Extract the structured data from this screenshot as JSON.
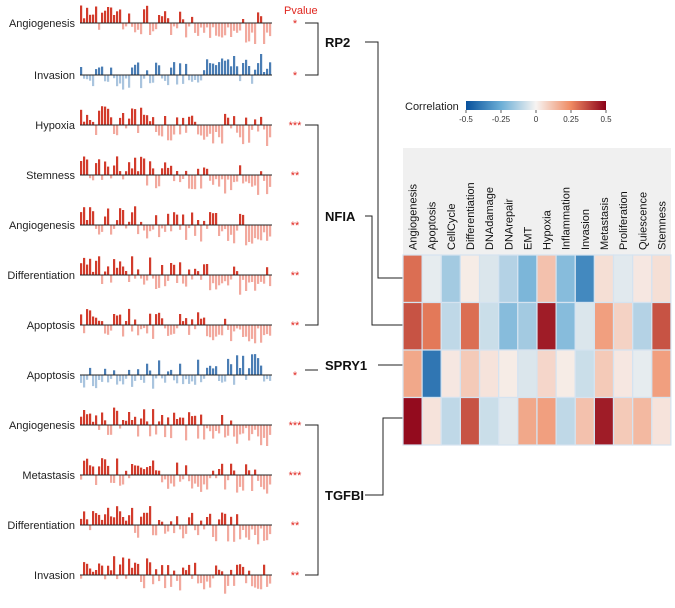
{
  "pvalue_header": "Pvalue",
  "legend": {
    "title": "Correlation",
    "ticks": [
      "-0.5",
      "-0.25",
      "0",
      "0.25",
      "0.5"
    ],
    "tick_values": [
      -0.5,
      -0.25,
      0,
      0.25,
      0.5
    ]
  },
  "colors": {
    "pos_strong": "#d23b2c",
    "pos_light": "#f2a99e",
    "neg_strong": "#4a7db4",
    "neg_light": "#a9c4de",
    "pvalue": "#e0261f"
  },
  "genes": [
    {
      "name": "RP2",
      "heatmap_row": 0,
      "enrichments": [
        0,
        1
      ]
    },
    {
      "name": "NFIA",
      "heatmap_row": 1,
      "enrichments": [
        2,
        3,
        4,
        5,
        6
      ]
    },
    {
      "name": "SPRY1",
      "heatmap_row": 2,
      "enrichments": [
        7
      ]
    },
    {
      "name": "TGFBI",
      "heatmap_row": 3,
      "enrichments": [
        8,
        9,
        10,
        11
      ]
    }
  ],
  "enrichment_plots": [
    {
      "label": "Angiogenesis",
      "pvalue": "*",
      "direction": "positive"
    },
    {
      "label": "Invasion",
      "pvalue": "*",
      "direction": "negative"
    },
    {
      "label": "Hypoxia",
      "pvalue": "***",
      "direction": "positive"
    },
    {
      "label": "Stemness",
      "pvalue": "**",
      "direction": "positive"
    },
    {
      "label": "Angiogenesis",
      "pvalue": "**",
      "direction": "positive"
    },
    {
      "label": "Differentiation",
      "pvalue": "**",
      "direction": "positive"
    },
    {
      "label": "Apoptosis",
      "pvalue": "**",
      "direction": "positive"
    },
    {
      "label": "Apoptosis",
      "pvalue": "*",
      "direction": "negative"
    },
    {
      "label": "Angiogenesis",
      "pvalue": "***",
      "direction": "positive"
    },
    {
      "label": "Metastasis",
      "pvalue": "***",
      "direction": "positive"
    },
    {
      "label": "Differentiation",
      "pvalue": "**",
      "direction": "positive"
    },
    {
      "label": "Invasion",
      "pvalue": "**",
      "direction": "positive"
    }
  ],
  "chart_data": {
    "type": "heatmap",
    "title": "",
    "legend_title": "Correlation",
    "color_range": [
      -0.5,
      0.5
    ],
    "columns": [
      "Angiogenesis",
      "Apoptosis",
      "CellCycle",
      "Differentiation",
      "DNAdamage",
      "DNArepair",
      "EMT",
      "Hypoxia",
      "Inflammation",
      "Invasion",
      "Metastasis",
      "Proliferation",
      "Quiescence",
      "Stemness"
    ],
    "rows": [
      "RP2",
      "NFIA",
      "SPRY1",
      "TGFBI"
    ],
    "values": [
      [
        0.3,
        -0.03,
        -0.15,
        0.02,
        -0.05,
        -0.12,
        -0.22,
        0.12,
        -0.2,
        -0.35,
        0.05,
        -0.04,
        0.03,
        0.05
      ],
      [
        0.35,
        0.28,
        -0.1,
        0.3,
        -0.08,
        -0.2,
        -0.15,
        0.45,
        -0.2,
        -0.05,
        0.2,
        0.08,
        -0.12,
        0.35
      ],
      [
        0.18,
        -0.4,
        0.03,
        0.1,
        0.04,
        0.02,
        -0.05,
        0.07,
        0.02,
        -0.08,
        0.1,
        0.03,
        -0.03,
        0.2
      ],
      [
        0.48,
        0.04,
        -0.1,
        0.35,
        -0.08,
        -0.04,
        0.18,
        0.2,
        -0.1,
        0.12,
        0.45,
        0.1,
        0.14,
        0.04
      ]
    ]
  }
}
